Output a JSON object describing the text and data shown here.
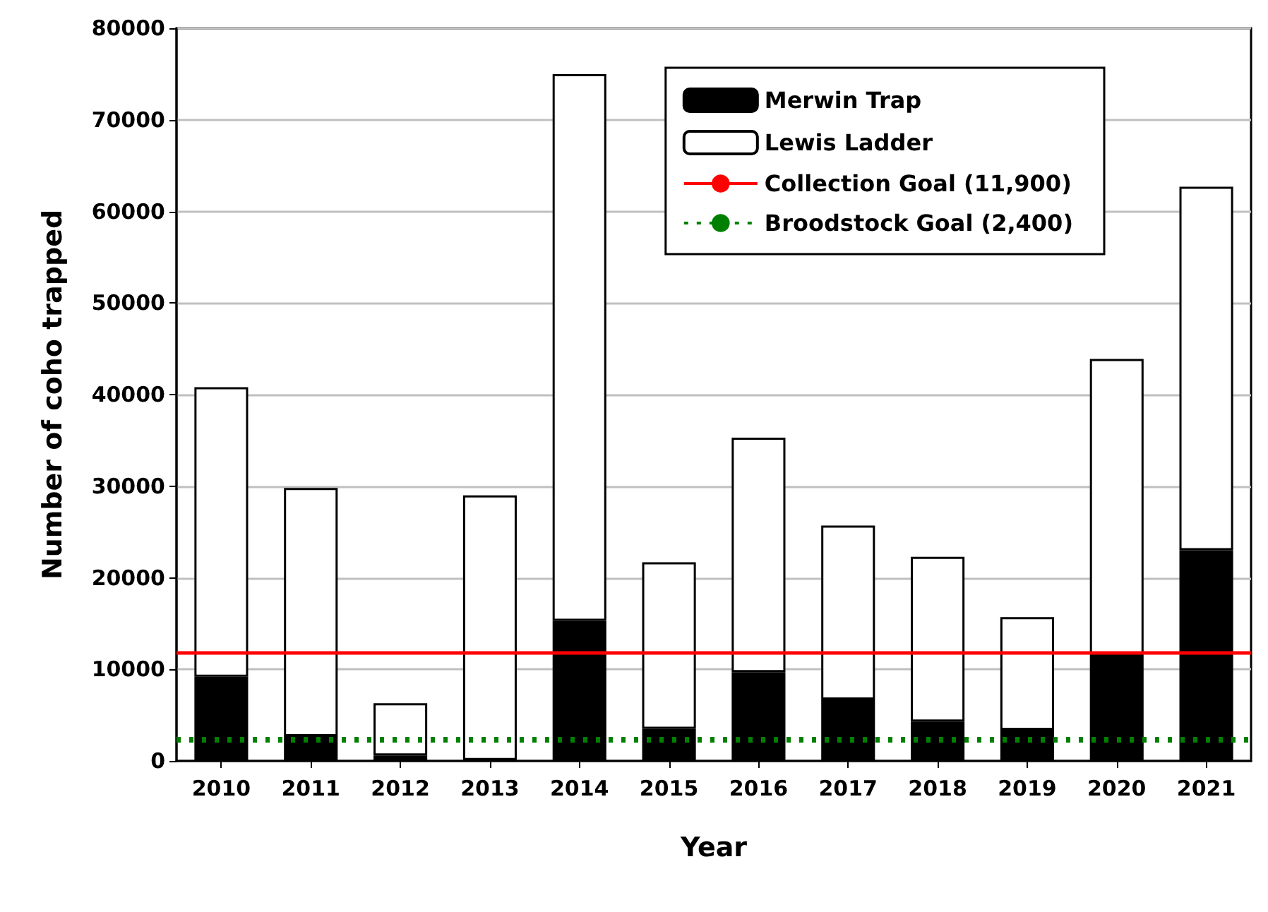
{
  "chart_data": {
    "type": "bar",
    "stacked": true,
    "xlabel": "Year",
    "ylabel": "Number of coho trapped",
    "categories": [
      "2010",
      "2011",
      "2012",
      "2013",
      "2014",
      "2015",
      "2016",
      "2017",
      "2018",
      "2019",
      "2020",
      "2021"
    ],
    "series": [
      {
        "name": "Merwin Trap",
        "color": "#000000",
        "values": [
          9200,
          2700,
          600,
          100,
          15300,
          3500,
          9700,
          6700,
          4300,
          3400,
          11700,
          23000
        ]
      },
      {
        "name": "Lewis Ladder",
        "color": "#ffffff",
        "values": [
          31600,
          27100,
          5700,
          28900,
          59700,
          18200,
          25600,
          19000,
          18000,
          12300,
          32200,
          39700
        ]
      }
    ],
    "ylim": [
      0,
      80000
    ],
    "yticks": [
      0,
      10000,
      20000,
      30000,
      40000,
      50000,
      60000,
      70000,
      80000
    ],
    "ref_lines": [
      {
        "axis": "y",
        "value": 11900,
        "label": "Collection Goal (11,900)",
        "color": "#ff0000",
        "line_style": "solid"
      },
      {
        "axis": "y",
        "value": 2400,
        "label": "Broodstock Goal (2,400)",
        "color": "#008000",
        "line_style": "dotted"
      }
    ],
    "grid": "y",
    "legend": "top right"
  }
}
